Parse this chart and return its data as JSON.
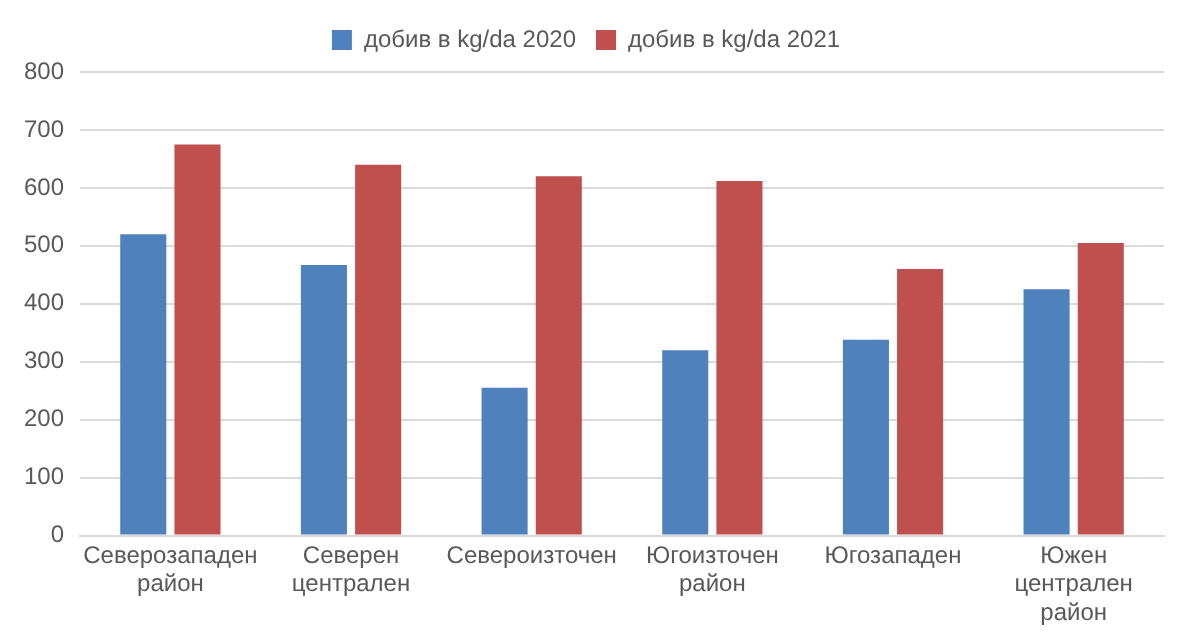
{
  "chart_data": {
    "type": "bar",
    "categories": [
      "Северозападен район",
      "Северен централен",
      "Североизточен",
      "Югоизточен район",
      "Югозападен",
      "Южен централен район"
    ],
    "series": [
      {
        "name": "добив в kg/da 2020",
        "color": "#4f81bd",
        "values": [
          520,
          467,
          255,
          320,
          338,
          425
        ]
      },
      {
        "name": "добив в kg/da 2021",
        "color": "#c0504d",
        "values": [
          675,
          640,
          620,
          612,
          460,
          505
        ]
      }
    ],
    "ylim": [
      0,
      800
    ],
    "yticks": [
      0,
      100,
      200,
      300,
      400,
      500,
      600,
      700,
      800
    ],
    "grid": "y",
    "legend": "top"
  }
}
